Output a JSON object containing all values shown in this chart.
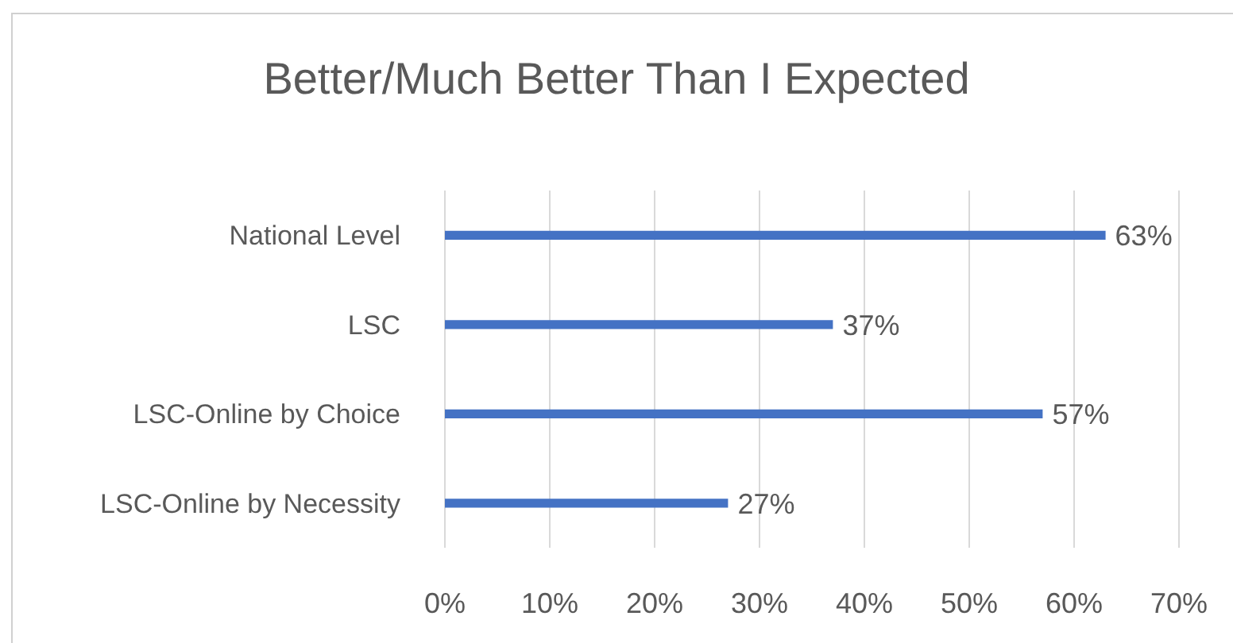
{
  "chart_data": {
    "type": "bar",
    "orientation": "horizontal",
    "title": "Better/Much Better Than I Expected",
    "categories": [
      "National Level",
      "LSC",
      "LSC-Online by Choice",
      "LSC-Online by Necessity"
    ],
    "values": [
      63,
      37,
      57,
      27
    ],
    "color": "#4472c4",
    "value_labels": [
      "63%",
      "37%",
      "57%",
      "27%"
    ],
    "xlim": [
      0,
      70
    ],
    "xticks": [
      {
        "value": 0,
        "label": "0%"
      },
      {
        "value": 10,
        "label": "10%"
      },
      {
        "value": 20,
        "label": "20%"
      },
      {
        "value": 30,
        "label": "30%"
      },
      {
        "value": 40,
        "label": "40%"
      },
      {
        "value": 50,
        "label": "50%"
      },
      {
        "value": 60,
        "label": "60%"
      },
      {
        "value": 70,
        "label": "70%"
      }
    ],
    "grid": "x",
    "legend": false
  }
}
